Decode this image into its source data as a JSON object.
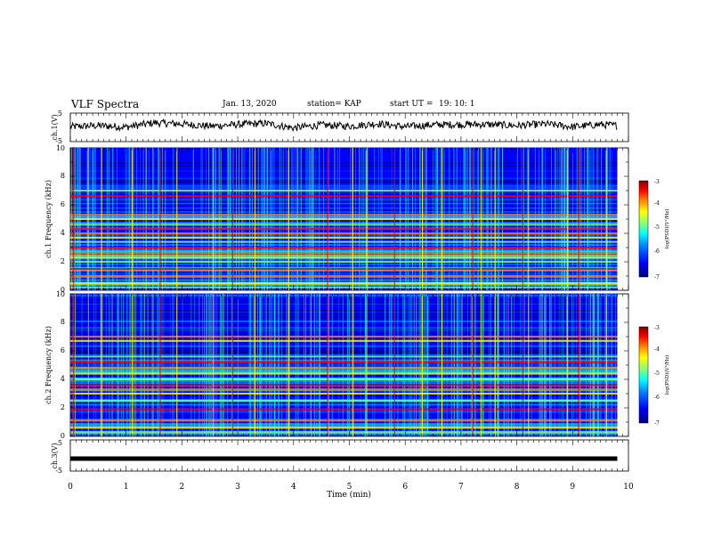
{
  "header": {
    "title": "VLF Spectra",
    "date": "Jan. 13, 2020",
    "station": "station= KAP",
    "start_ut": "start UT =",
    "start_time": "19: 10: 1"
  },
  "chart_data": [
    {
      "type": "line",
      "panel": "ch1-waveform",
      "ylabel": "ch.1(V)",
      "ylim": [
        -5,
        5
      ],
      "yticks": [
        "5",
        "-5"
      ],
      "xlim": [
        0,
        10
      ],
      "x": [
        0,
        0.5,
        1,
        1.5,
        2,
        2.5,
        3,
        3.5,
        4,
        4.5,
        5,
        5.5,
        6,
        6.5,
        7,
        7.5,
        8,
        8.5,
        9,
        9.5,
        9.8
      ],
      "y": [
        0.2,
        0.6,
        0.1,
        1.6,
        1.2,
        0.4,
        1.0,
        1.4,
        -0.2,
        0.8,
        0.4,
        1.3,
        0.2,
        0.9,
        1.0,
        1.0,
        0.6,
        1.2,
        0.2,
        1.0,
        0.6
      ],
      "color": "#000000"
    },
    {
      "type": "heatmap",
      "panel": "ch1-spectrogram",
      "ylabel": "ch.1 Frequency (kHz)",
      "ylim": [
        0,
        10
      ],
      "yticks": [
        "0",
        "2",
        "4",
        "6",
        "8",
        "10"
      ],
      "xlim": [
        0,
        9.8
      ],
      "colorbar": {
        "label": "log(PSD)(V²/Hz)",
        "range": [
          -7,
          -3
        ],
        "ticks": [
          "-3",
          "-4",
          "-5",
          "-6",
          "-7"
        ]
      },
      "bands_khz": [
        0.2,
        0.5,
        1.0,
        1.5,
        2.0,
        2.3,
        2.6,
        3.0,
        3.4,
        3.7,
        4.0,
        4.3,
        4.6,
        5.0,
        5.3,
        6.6,
        7.0
      ],
      "bright_times_min": [
        0.05,
        0.55,
        1.1,
        1.6,
        1.9,
        2.55,
        2.9,
        3.3,
        3.9,
        4.6,
        5.05,
        5.3,
        5.8,
        6.3,
        6.65,
        7.2,
        7.35,
        7.6,
        8.1,
        8.2,
        8.9,
        9.1,
        9.6
      ]
    },
    {
      "type": "heatmap",
      "panel": "ch2-spectrogram",
      "ylabel": "ch.2 Frequency (kHz)",
      "ylim": [
        0,
        10
      ],
      "yticks": [
        "0",
        "2",
        "4",
        "6",
        "8",
        "10"
      ],
      "xlim": [
        0,
        9.8
      ],
      "colorbar": {
        "label": "log(PSD)(V²/Hz)",
        "range": [
          -7,
          -3
        ],
        "ticks": [
          "-3",
          "-4",
          "-5",
          "-6",
          "-7"
        ]
      },
      "bands_khz": [
        0.3,
        0.6,
        1.1,
        1.9,
        2.5,
        3.0,
        3.3,
        3.6,
        4.0,
        4.4,
        4.8,
        5.2,
        5.6,
        6.7,
        7.0
      ],
      "bright_times_min": [
        0.05,
        0.55,
        1.1,
        1.6,
        1.9,
        2.55,
        2.9,
        3.3,
        3.9,
        4.6,
        5.05,
        5.3,
        5.8,
        6.3,
        6.65,
        7.2,
        7.35,
        7.6,
        8.1,
        8.2,
        8.9,
        9.1,
        9.6
      ]
    },
    {
      "type": "line",
      "panel": "ch3-waveform",
      "ylabel": "ch.3(V)",
      "ylim": [
        -5,
        5
      ],
      "yticks": [
        "5",
        "-5"
      ],
      "xlim": [
        0,
        10
      ],
      "x": [
        0,
        9.8
      ],
      "y": [
        -1.0,
        -1.0
      ],
      "color": "#000000"
    }
  ],
  "xaxis": {
    "label": "Time (min)",
    "ticks": [
      "0",
      "1",
      "2",
      "3",
      "4",
      "5",
      "6",
      "7",
      "8",
      "9",
      "10"
    ]
  },
  "colormap": [
    "#00007f",
    "#0000ff",
    "#007fff",
    "#00ffff",
    "#7fff7f",
    "#ffff00",
    "#ff7f00",
    "#ff0000",
    "#7f0000"
  ]
}
